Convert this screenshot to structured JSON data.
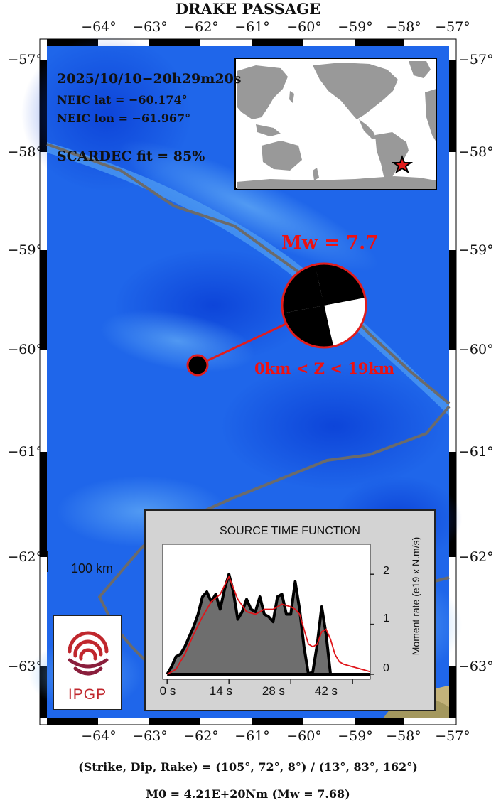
{
  "title": "DRAKE PASSAGE",
  "axes": {
    "lon_ticks": [
      "−64°",
      "−63°",
      "−62°",
      "−61°",
      "−60°",
      "−59°",
      "−58°",
      "−57°"
    ],
    "lat_ticks": [
      "−57°",
      "−58°",
      "−59°",
      "−60°",
      "−61°",
      "−62°",
      "−63°"
    ]
  },
  "map_extent": {
    "lon_min": -65,
    "lon_max": -57,
    "lat_min": -63.5,
    "lat_max": -56.8
  },
  "event": {
    "date": "2025/10/10−20h29m20s",
    "lat_text": "NEIC lat  = −60.174°",
    "lon_text": "NEIC lon = −61.967°",
    "fit_text": "SCARDEC fit = 85%",
    "epicenter": {
      "lon": -61.967,
      "lat": -60.174
    },
    "mw_label": "Mw = 7.7",
    "depth_label": "0km < Z <  19km"
  },
  "scale_label": "100 km",
  "stf": {
    "title": "SOURCE TIME FUNCTION",
    "x_ticks": [
      "0 s",
      "14 s",
      "28 s",
      "42 s"
    ],
    "x_tick_values": [
      0,
      14,
      28,
      42
    ],
    "y_ticks": [
      "0",
      "1",
      "2"
    ],
    "y_tick_values": [
      0,
      1,
      2
    ],
    "ylabel": "Moment rate (e19 x N.m/s)",
    "xlim": [
      -1,
      46
    ],
    "ylim": [
      -0.1,
      2.6
    ],
    "main_curve": {
      "t": [
        0,
        1,
        2,
        3,
        4,
        5,
        6,
        7,
        8,
        9,
        10,
        11,
        12,
        13,
        14,
        15,
        16,
        17,
        18,
        19,
        20,
        21,
        22,
        23,
        24,
        25,
        26,
        27,
        28,
        29,
        30,
        31,
        32,
        33,
        34,
        35,
        36,
        37,
        38,
        39
      ],
      "v": [
        0,
        0.15,
        0.35,
        0.4,
        0.55,
        0.75,
        0.95,
        1.2,
        1.55,
        1.65,
        1.45,
        1.6,
        1.3,
        1.7,
        2.0,
        1.65,
        1.1,
        1.25,
        1.5,
        1.3,
        1.25,
        1.55,
        1.2,
        1.15,
        1.05,
        1.55,
        1.6,
        1.2,
        1.2,
        1.85,
        1.3,
        0.55,
        0.0,
        0.05,
        0.6,
        1.35,
        0.8,
        0.0,
        0.0,
        0.0
      ]
    },
    "fit_curve": {
      "t": [
        0,
        2,
        4,
        6,
        8,
        10,
        12,
        14,
        16,
        18,
        20,
        22,
        24,
        26,
        28,
        29,
        30,
        31,
        32,
        33,
        34,
        35,
        36,
        37,
        38,
        39,
        40,
        42,
        44,
        46
      ],
      "v": [
        0,
        0.1,
        0.4,
        0.8,
        1.15,
        1.45,
        1.6,
        1.95,
        1.5,
        1.25,
        1.2,
        1.3,
        1.3,
        1.4,
        1.35,
        1.3,
        1.2,
        0.9,
        0.6,
        0.55,
        0.6,
        0.85,
        0.9,
        0.7,
        0.4,
        0.25,
        0.2,
        0.15,
        0.1,
        0.05
      ]
    },
    "colors": {
      "fill": "#6e6e6e",
      "main": "#000000",
      "fit": "#e0161b"
    }
  },
  "logo_text": "IPGP",
  "footer": {
    "nodal_planes": "(Strike, Dip, Rake) = (105°, 72°, 8°) / (13°, 83°, 162°)",
    "moment": "M0 = 4.21E+20Nm  (Mw = 7.68)"
  },
  "colors": {
    "ocean": "#1f66ea",
    "accent": "#e11d1d",
    "plate_boundary": "#6b6b6b"
  },
  "icons": {
    "epicenter_marker": "red-circle-icon",
    "inset_marker": "star-icon"
  }
}
